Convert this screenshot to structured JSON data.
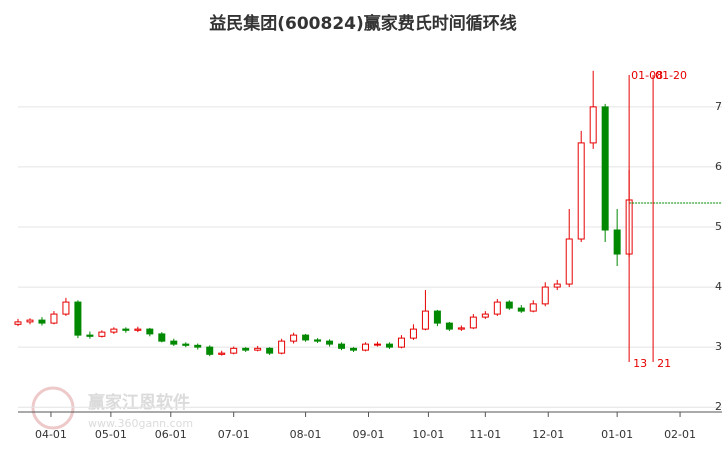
{
  "chart_data": {
    "type": "candlestick",
    "title": "益民集团(600824)赢家费氏时间循环线",
    "watermark": "赢家江恩软件",
    "watermark_url": "www.360gann.com",
    "x": [
      0,
      4,
      8,
      12,
      16,
      20,
      24,
      28,
      32,
      36,
      40,
      44,
      48,
      52,
      56,
      60,
      64,
      68,
      72,
      76,
      80,
      84,
      88,
      92,
      96,
      100,
      104,
      108,
      112,
      116,
      120,
      124,
      128,
      132,
      136,
      140,
      144,
      148,
      152,
      156,
      160,
      164,
      168,
      172,
      176,
      180,
      184,
      188,
      192,
      196,
      200,
      204
    ],
    "open": [
      3.38,
      3.42,
      3.45,
      3.4,
      3.55,
      3.75,
      3.2,
      3.18,
      3.25,
      3.3,
      3.28,
      3.3,
      3.22,
      3.1,
      3.05,
      3.03,
      3.0,
      2.88,
      2.9,
      2.98,
      2.95,
      2.98,
      2.9,
      3.1,
      3.2,
      3.12,
      3.1,
      3.05,
      2.98,
      2.95,
      3.05,
      3.05,
      3.0,
      3.15,
      3.3,
      3.6,
      3.4,
      3.3,
      3.32,
      3.5,
      3.55,
      3.75,
      3.65,
      3.6,
      3.72,
      4.0,
      4.05,
      4.8,
      6.4,
      7.0,
      4.95,
      4.55
    ],
    "close": [
      3.42,
      3.45,
      3.4,
      3.55,
      3.75,
      3.2,
      3.18,
      3.25,
      3.3,
      3.28,
      3.3,
      3.22,
      3.1,
      3.05,
      3.03,
      3.0,
      2.88,
      2.9,
      2.98,
      2.95,
      2.98,
      2.9,
      3.1,
      3.2,
      3.12,
      3.1,
      3.05,
      2.98,
      2.95,
      3.05,
      3.05,
      3.0,
      3.15,
      3.3,
      3.6,
      3.4,
      3.3,
      3.32,
      3.5,
      3.55,
      3.75,
      3.65,
      3.6,
      3.72,
      4.0,
      4.05,
      4.8,
      6.4,
      7.0,
      4.95,
      4.55,
      5.45
    ],
    "high": [
      3.47,
      3.48,
      3.5,
      3.6,
      3.82,
      3.78,
      3.26,
      3.28,
      3.33,
      3.33,
      3.34,
      3.32,
      3.25,
      3.14,
      3.08,
      3.06,
      3.03,
      2.94,
      3.01,
      3.0,
      3.02,
      3.0,
      3.14,
      3.24,
      3.22,
      3.15,
      3.13,
      3.08,
      3.0,
      3.08,
      3.09,
      3.08,
      3.2,
      3.38,
      3.95,
      3.62,
      3.42,
      3.36,
      3.55,
      3.6,
      3.8,
      3.78,
      3.7,
      3.78,
      4.08,
      4.12,
      5.3,
      6.6,
      7.6,
      7.05,
      5.3,
      5.95
    ],
    "low": [
      3.35,
      3.38,
      3.36,
      3.38,
      3.52,
      3.15,
      3.14,
      3.16,
      3.22,
      3.24,
      3.25,
      3.18,
      3.08,
      3.02,
      3.0,
      2.96,
      2.85,
      2.86,
      2.88,
      2.92,
      2.93,
      2.87,
      2.88,
      3.06,
      3.09,
      3.07,
      3.01,
      2.95,
      2.92,
      2.93,
      3.01,
      2.97,
      2.98,
      3.12,
      3.28,
      3.35,
      3.27,
      3.27,
      3.3,
      3.47,
      3.52,
      3.62,
      3.57,
      3.58,
      3.68,
      3.95,
      4.0,
      4.75,
      6.3,
      4.75,
      4.35,
      4.5
    ],
    "up_color": "#e60000",
    "down_color": "#008800",
    "xlim": [
      0,
      235
    ],
    "xticks": [
      {
        "value": 11,
        "label": "04-01"
      },
      {
        "value": 31,
        "label": "05-01"
      },
      {
        "value": 51,
        "label": "06-01"
      },
      {
        "value": 72,
        "label": "07-01"
      },
      {
        "value": 96,
        "label": "08-01"
      },
      {
        "value": 117,
        "label": "09-01"
      },
      {
        "value": 137,
        "label": "10-01"
      },
      {
        "value": 156,
        "label": "11-01"
      },
      {
        "value": 177,
        "label": "12-01"
      },
      {
        "value": 200,
        "label": "01-01"
      },
      {
        "value": 221,
        "label": "02-01"
      }
    ],
    "ylim": [
      1.92,
      8.03
    ],
    "yticks": [
      2,
      3,
      4,
      5,
      6,
      7
    ],
    "grid": true,
    "cycle_lines": [
      {
        "x": 204,
        "label": "01-08",
        "count": 13
      },
      {
        "x": 212,
        "label": "01-20",
        "count": 21
      }
    ],
    "cycle_color": "#e60000",
    "level": {
      "value": 5.4,
      "from_x": 204,
      "color": "#008800"
    }
  }
}
